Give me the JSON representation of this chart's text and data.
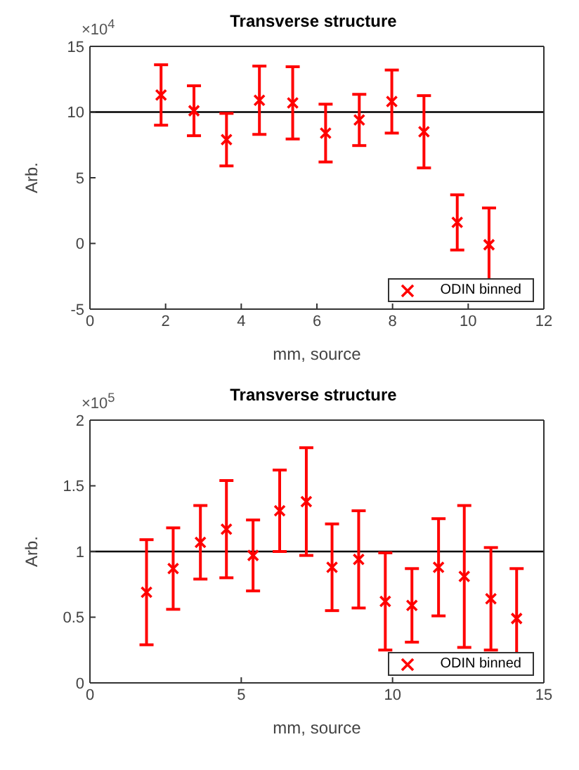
{
  "chart_data": [
    {
      "type": "scatter",
      "title": "Transverse structure",
      "xlabel": "mm, source",
      "ylabel": "Arb.",
      "annotations": [
        "×10$^{4}$"
      ],
      "x": [
        1.88,
        2.75,
        3.61,
        4.48,
        5.36,
        6.23,
        7.12,
        7.98,
        8.83,
        9.71,
        10.55
      ],
      "series": [
        {
          "name": "ODIN binned",
          "color": "#ff0000",
          "values": [
            11.3,
            10.1,
            7.9,
            10.9,
            10.7,
            8.4,
            9.4,
            10.8,
            8.5,
            1.6,
            -0.1
          ],
          "errors": [
            2.3,
            1.9,
            2.0,
            2.6,
            2.75,
            2.2,
            1.95,
            2.4,
            2.75,
            2.1,
            2.8
          ]
        }
      ],
      "marker": "cross",
      "xlim": [
        0,
        12
      ],
      "xticks": [
        0,
        2,
        4,
        6,
        8,
        10,
        12
      ],
      "ylim": [
        -5,
        15
      ],
      "yticks": [
        -5,
        0,
        5,
        10,
        15
      ],
      "ref_lines": [
        {
          "axis": "y",
          "value": 10,
          "color": "#000000"
        }
      ],
      "legend": "bottom right",
      "grid": false
    },
    {
      "type": "scatter",
      "title": "Transverse structure",
      "xlabel": "mm, source",
      "ylabel": "Arb.",
      "annotations": [
        "×10$^{5}$"
      ],
      "x": [
        1.87,
        2.75,
        3.65,
        4.51,
        5.39,
        6.27,
        7.15,
        8.0,
        8.88,
        9.76,
        10.64,
        11.52,
        12.37,
        13.25,
        14.1
      ],
      "series": [
        {
          "name": "ODIN binned",
          "color": "#ff0000",
          "values": [
            0.69,
            0.87,
            1.07,
            1.17,
            0.97,
            1.31,
            1.38,
            0.88,
            0.94,
            0.62,
            0.59,
            0.88,
            0.81,
            0.64,
            0.49
          ],
          "errors": [
            0.4,
            0.31,
            0.28,
            0.37,
            0.27,
            0.31,
            0.41,
            0.33,
            0.37,
            0.37,
            0.28,
            0.37,
            0.54,
            0.39,
            0.38
          ]
        }
      ],
      "marker": "cross",
      "xlim": [
        0,
        15
      ],
      "xticks": [
        0,
        5,
        10,
        15
      ],
      "ylim": [
        0,
        2
      ],
      "yticks": [
        0,
        0.5,
        1,
        1.5,
        2
      ],
      "ref_lines": [
        {
          "axis": "y",
          "value": 1,
          "color": "#000000"
        }
      ],
      "legend": "bottom right",
      "grid": false
    }
  ]
}
